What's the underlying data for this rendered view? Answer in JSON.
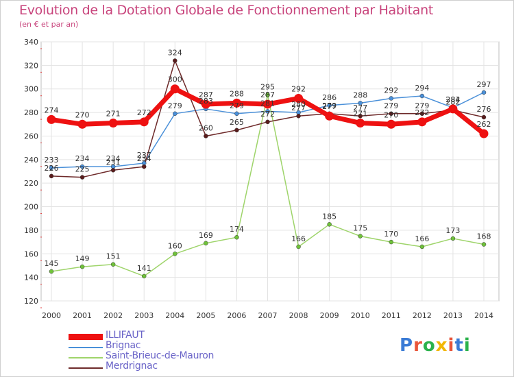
{
  "header": {
    "title": "Evolution de la Dotation Globale de Fonctionnement par Habitant",
    "subtitle": "(en € et par an)"
  },
  "logo": {
    "text": "Proxiti",
    "colors": [
      "#3a7bd5",
      "#e8553a",
      "#2bb24c",
      "#f2b705",
      "#e8553a",
      "#3a7bd5",
      "#2bb24c"
    ]
  },
  "chart_data": {
    "type": "line",
    "title": "Evolution de la Dotation Globale de Fonctionnement par Habitant",
    "subtitle": "(en € et par an)",
    "xlabel": "",
    "ylabel": "",
    "ylim": [
      120,
      340
    ],
    "yticks": [
      120,
      140,
      160,
      180,
      200,
      220,
      240,
      260,
      280,
      300,
      320,
      340
    ],
    "x": [
      "2000",
      "2001",
      "2002",
      "2003",
      "2004",
      "2005",
      "2006",
      "2007",
      "2008",
      "2009",
      "2010",
      "2011",
      "2012",
      "2013",
      "2014"
    ],
    "legend_position": "bottom-left",
    "grid": true,
    "series": [
      {
        "name": "Brignac",
        "color": "#4a90d9",
        "marker": "#4a90d9",
        "width": 1.5,
        "values": [
          233,
          234,
          234,
          237,
          279,
          283,
          279,
          281,
          280,
          286,
          288,
          292,
          294,
          284,
          297
        ]
      },
      {
        "name": "Saint-Brieuc-de-Mauron",
        "color": "#9ed46a",
        "marker": "#6fc23a",
        "width": 1.5,
        "values": [
          145,
          149,
          151,
          141,
          160,
          169,
          174,
          295,
          166,
          185,
          175,
          170,
          166,
          173,
          168
        ]
      },
      {
        "name": "Merdrignac",
        "color": "#6e2a2a",
        "marker": "#5a1c1c",
        "width": 1.5,
        "values": [
          226,
          225,
          231,
          234,
          324,
          260,
          265,
          272,
          277,
          279,
          277,
          279,
          279,
          282,
          276
        ]
      },
      {
        "name": "ILLIFAUT",
        "color": "#ee1111",
        "marker": "#ee1111",
        "width": 7,
        "values": [
          274,
          270,
          271,
          272,
          300,
          287,
          288,
          287,
          292,
          277,
          271,
          270,
          272,
          283,
          262
        ]
      }
    ],
    "data_labels": [
      [
        "233",
        "234",
        "234",
        "237",
        "279",
        "283",
        "279",
        "281",
        "280",
        "286",
        "288",
        "292",
        "294",
        "284",
        "297"
      ],
      [
        "145",
        "149",
        "151",
        "141",
        "160",
        "169",
        "174",
        "295",
        "166",
        "185",
        "175",
        "170",
        "166",
        "173",
        "168"
      ],
      [
        "226",
        "225",
        "231",
        "234",
        "324",
        "260",
        "265",
        "272",
        "277",
        "279",
        "277",
        "279",
        "279",
        "282",
        "276"
      ],
      [
        "274",
        "270",
        "271",
        "272",
        "300",
        "287",
        "288",
        "287",
        "292",
        "277",
        "271",
        "270",
        "272",
        "283",
        "262"
      ]
    ]
  }
}
